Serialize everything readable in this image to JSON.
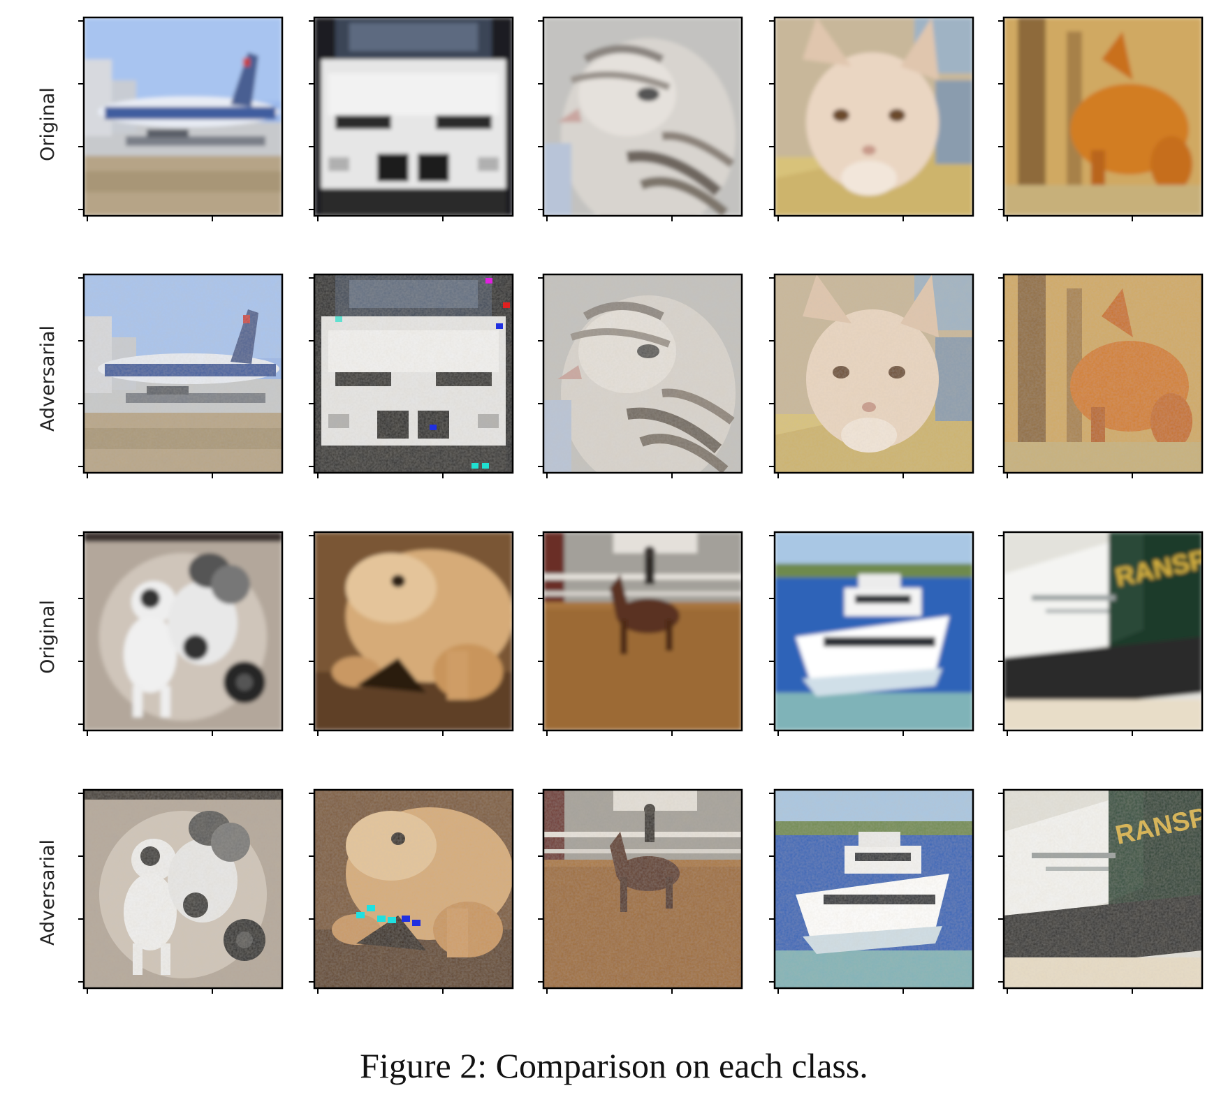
{
  "figure": {
    "caption": "Figure 2: Comparison on each class.",
    "row_labels": [
      "Original",
      "Adversarial",
      "Original",
      "Adversarial"
    ],
    "columns_per_row": 5,
    "panels": [
      {
        "row": 1,
        "col": 1,
        "group": "Original",
        "subject": "airplane"
      },
      {
        "row": 1,
        "col": 2,
        "group": "Original",
        "subject": "automobile"
      },
      {
        "row": 1,
        "col": 3,
        "group": "Original",
        "subject": "bird"
      },
      {
        "row": 1,
        "col": 4,
        "group": "Original",
        "subject": "cat"
      },
      {
        "row": 1,
        "col": 5,
        "group": "Original",
        "subject": "deer"
      },
      {
        "row": 2,
        "col": 1,
        "group": "Adversarial",
        "subject": "airplane"
      },
      {
        "row": 2,
        "col": 2,
        "group": "Adversarial",
        "subject": "automobile"
      },
      {
        "row": 2,
        "col": 3,
        "group": "Adversarial",
        "subject": "bird"
      },
      {
        "row": 2,
        "col": 4,
        "group": "Adversarial",
        "subject": "cat"
      },
      {
        "row": 2,
        "col": 5,
        "group": "Adversarial",
        "subject": "deer"
      },
      {
        "row": 3,
        "col": 1,
        "group": "Original",
        "subject": "dog"
      },
      {
        "row": 3,
        "col": 2,
        "group": "Original",
        "subject": "frog"
      },
      {
        "row": 3,
        "col": 3,
        "group": "Original",
        "subject": "horse"
      },
      {
        "row": 3,
        "col": 4,
        "group": "Original",
        "subject": "ship"
      },
      {
        "row": 3,
        "col": 5,
        "group": "Original",
        "subject": "truck"
      },
      {
        "row": 4,
        "col": 1,
        "group": "Adversarial",
        "subject": "dog"
      },
      {
        "row": 4,
        "col": 2,
        "group": "Adversarial",
        "subject": "frog"
      },
      {
        "row": 4,
        "col": 3,
        "group": "Adversarial",
        "subject": "horse"
      },
      {
        "row": 4,
        "col": 4,
        "group": "Adversarial",
        "subject": "ship"
      },
      {
        "row": 4,
        "col": 5,
        "group": "Adversarial",
        "subject": "truck"
      }
    ]
  }
}
